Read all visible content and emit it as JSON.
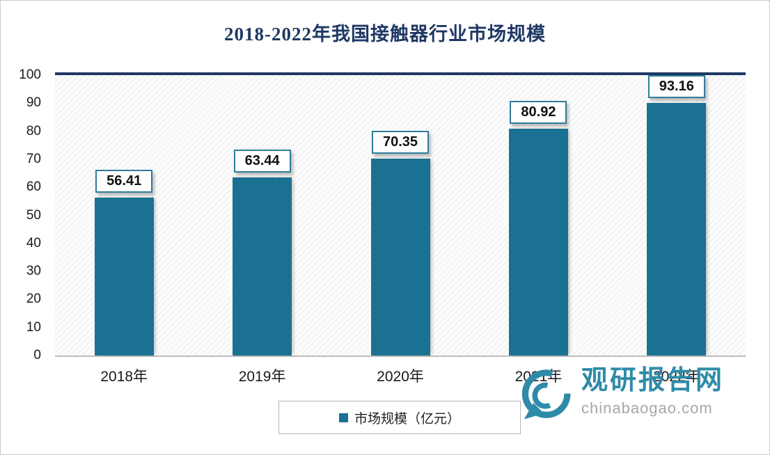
{
  "chart_data": {
    "type": "bar",
    "title": "2018-2022年我国接触器行业市场规模",
    "categories": [
      "2018年",
      "2019年",
      "2020年",
      "2021年",
      "2022年"
    ],
    "series": [
      {
        "name": "市场规模（亿元）",
        "values": [
          56.41,
          63.44,
          70.35,
          80.92,
          93.16
        ]
      }
    ],
    "value_labels": [
      "56.41",
      "63.44",
      "70.35",
      "80.92",
      "93.16"
    ],
    "xlabel": "",
    "ylabel": "",
    "ylim": [
      0,
      100
    ],
    "y_ticks": [
      0,
      10,
      20,
      30,
      40,
      50,
      60,
      70,
      80,
      90,
      100
    ],
    "grid": "hatched-background",
    "legend": {
      "label": "市场规模（亿元）",
      "position": "bottom-center"
    },
    "colors": {
      "bar": "#1A7191",
      "title": "#1F3864",
      "axis_text": "#1A1A1A",
      "value_label_border": "#2E7D9A",
      "plot_top_line": "#1F3864"
    }
  },
  "watermark": {
    "name": "观研报告网",
    "url_text": "chinabaogao.com",
    "color": "#2E8BA8",
    "url_color": "#A6A6A6"
  }
}
